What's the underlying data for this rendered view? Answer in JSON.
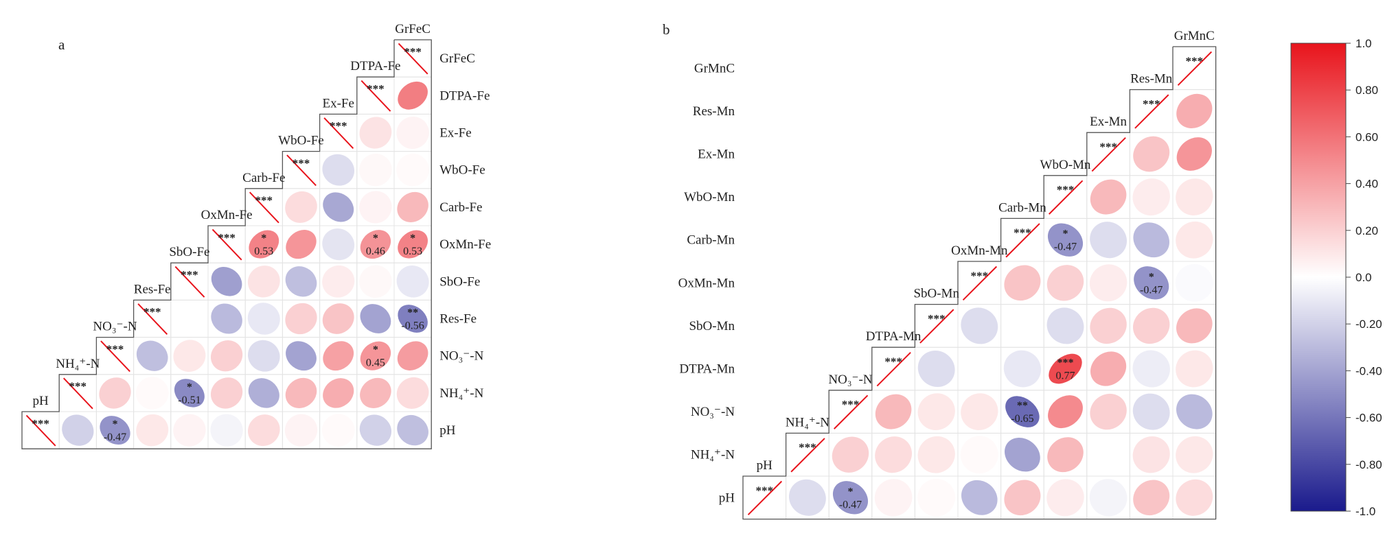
{
  "chart_data": [
    {
      "type": "heatmap",
      "panel_label": "a",
      "variables": [
        "GrFeC",
        "DTPA-Fe",
        "Ex-Fe",
        "WbO-Fe",
        "Carb-Fe",
        "OxMn-Fe",
        "SbO-Fe",
        "Res-Fe",
        "NO₃⁻-N",
        "NH₄⁺-N",
        "pH"
      ],
      "diagonal_mark": "***",
      "cells": [
        {
          "row": "DTPA-Fe",
          "col": "GrFeC",
          "r": 0.55
        },
        {
          "row": "Ex-Fe",
          "col": "DTPA-Fe",
          "r": 0.12
        },
        {
          "row": "Ex-Fe",
          "col": "GrFeC",
          "r": 0.05
        },
        {
          "row": "WbO-Fe",
          "col": "Ex-Fe",
          "r": -0.15
        },
        {
          "row": "WbO-Fe",
          "col": "DTPA-Fe",
          "r": 0.03
        },
        {
          "row": "WbO-Fe",
          "col": "GrFeC",
          "r": 0.02
        },
        {
          "row": "Carb-Fe",
          "col": "WbO-Fe",
          "r": 0.15
        },
        {
          "row": "Carb-Fe",
          "col": "Ex-Fe",
          "r": -0.38
        },
        {
          "row": "Carb-Fe",
          "col": "DTPA-Fe",
          "r": 0.05
        },
        {
          "row": "Carb-Fe",
          "col": "GrFeC",
          "r": 0.3
        },
        {
          "row": "OxMn-Fe",
          "col": "Carb-Fe",
          "r": 0.53,
          "label": "0.53",
          "sig": "*"
        },
        {
          "row": "OxMn-Fe",
          "col": "WbO-Fe",
          "r": 0.45
        },
        {
          "row": "OxMn-Fe",
          "col": "Ex-Fe",
          "r": -0.12
        },
        {
          "row": "OxMn-Fe",
          "col": "DTPA-Fe",
          "r": 0.46,
          "label": "0.46",
          "sig": "*"
        },
        {
          "row": "OxMn-Fe",
          "col": "GrFeC",
          "r": 0.53,
          "label": "0.53",
          "sig": "*"
        },
        {
          "row": "SbO-Fe",
          "col": "OxMn-Fe",
          "r": -0.42
        },
        {
          "row": "SbO-Fe",
          "col": "Carb-Fe",
          "r": 0.12
        },
        {
          "row": "SbO-Fe",
          "col": "WbO-Fe",
          "r": -0.28
        },
        {
          "row": "SbO-Fe",
          "col": "Ex-Fe",
          "r": 0.08
        },
        {
          "row": "SbO-Fe",
          "col": "DTPA-Fe",
          "r": 0.03
        },
        {
          "row": "SbO-Fe",
          "col": "GrFeC",
          "r": -0.1
        },
        {
          "row": "Res-Fe",
          "col": "OxMn-Fe",
          "r": -0.3
        },
        {
          "row": "Res-Fe",
          "col": "Carb-Fe",
          "r": -0.1
        },
        {
          "row": "Res-Fe",
          "col": "WbO-Fe",
          "r": 0.2
        },
        {
          "row": "Res-Fe",
          "col": "Ex-Fe",
          "r": 0.25
        },
        {
          "row": "Res-Fe",
          "col": "DTPA-Fe",
          "r": -0.4
        },
        {
          "row": "Res-Fe",
          "col": "GrFeC",
          "r": -0.56,
          "label": "-0.56",
          "sig": "**"
        },
        {
          "row": "NO₃⁻-N",
          "col": "Res-Fe",
          "r": -0.28
        },
        {
          "row": "NO₃⁻-N",
          "col": "SbO-Fe",
          "r": 0.1
        },
        {
          "row": "NO₃⁻-N",
          "col": "OxMn-Fe",
          "r": 0.2
        },
        {
          "row": "NO₃⁻-N",
          "col": "Carb-Fe",
          "r": -0.15
        },
        {
          "row": "NO₃⁻-N",
          "col": "WbO-Fe",
          "r": -0.4
        },
        {
          "row": "NO₃⁻-N",
          "col": "Ex-Fe",
          "r": 0.4
        },
        {
          "row": "NO₃⁻-N",
          "col": "DTPA-Fe",
          "r": 0.45,
          "label": "0.45",
          "sig": "*"
        },
        {
          "row": "NO₃⁻-N",
          "col": "GrFeC",
          "r": 0.42
        },
        {
          "row": "NH₄⁺-N",
          "col": "NO₃⁻-N",
          "r": 0.2
        },
        {
          "row": "NH₄⁺-N",
          "col": "Res-Fe",
          "r": 0.02
        },
        {
          "row": "NH₄⁺-N",
          "col": "SbO-Fe",
          "r": -0.51,
          "label": "-0.51",
          "sig": "*"
        },
        {
          "row": "NH₄⁺-N",
          "col": "OxMn-Fe",
          "r": 0.2
        },
        {
          "row": "NH₄⁺-N",
          "col": "Carb-Fe",
          "r": -0.35
        },
        {
          "row": "NH₄⁺-N",
          "col": "WbO-Fe",
          "r": 0.3
        },
        {
          "row": "NH₄⁺-N",
          "col": "Ex-Fe",
          "r": 0.35
        },
        {
          "row": "NH₄⁺-N",
          "col": "DTPA-Fe",
          "r": 0.3
        },
        {
          "row": "NH₄⁺-N",
          "col": "GrFeC",
          "r": 0.15
        },
        {
          "row": "pH",
          "col": "NH₄⁺-N",
          "r": -0.2
        },
        {
          "row": "pH",
          "col": "NO₃⁻-N",
          "r": -0.47,
          "label": "-0.47",
          "sig": "*"
        },
        {
          "row": "pH",
          "col": "Res-Fe",
          "r": 0.1
        },
        {
          "row": "pH",
          "col": "SbO-Fe",
          "r": 0.05
        },
        {
          "row": "pH",
          "col": "OxMn-Fe",
          "r": -0.05
        },
        {
          "row": "pH",
          "col": "Carb-Fe",
          "r": 0.15
        },
        {
          "row": "pH",
          "col": "WbO-Fe",
          "r": 0.05
        },
        {
          "row": "pH",
          "col": "Ex-Fe",
          "r": 0.02
        },
        {
          "row": "pH",
          "col": "DTPA-Fe",
          "r": -0.2
        },
        {
          "row": "pH",
          "col": "GrFeC",
          "r": -0.28
        }
      ]
    },
    {
      "type": "heatmap",
      "panel_label": "b",
      "variables": [
        "GrMnC",
        "Res-Mn",
        "Ex-Mn",
        "WbO-Mn",
        "Carb-Mn",
        "OxMn-Mn",
        "SbO-Mn",
        "DTPA-Mn",
        "NO₃⁻-N",
        "NH₄⁺-N",
        "pH"
      ],
      "diagonal_mark": "***",
      "cells": [
        {
          "row": "Res-Mn",
          "col": "GrMnC",
          "r": 0.35
        },
        {
          "row": "Ex-Mn",
          "col": "GrMnC",
          "r": 0.45
        },
        {
          "row": "Ex-Mn",
          "col": "Res-Mn",
          "r": 0.25
        },
        {
          "row": "WbO-Mn",
          "col": "GrMnC",
          "r": 0.1
        },
        {
          "row": "WbO-Mn",
          "col": "Res-Mn",
          "r": 0.08
        },
        {
          "row": "WbO-Mn",
          "col": "Ex-Mn",
          "r": 0.3
        },
        {
          "row": "Carb-Mn",
          "col": "GrMnC",
          "r": 0.1
        },
        {
          "row": "Carb-Mn",
          "col": "Res-Mn",
          "r": -0.3
        },
        {
          "row": "Carb-Mn",
          "col": "Ex-Mn",
          "r": -0.15
        },
        {
          "row": "Carb-Mn",
          "col": "WbO-Mn",
          "r": -0.47,
          "label": "-0.47",
          "sig": "*"
        },
        {
          "row": "OxMn-Mn",
          "col": "GrMnC",
          "r": -0.02
        },
        {
          "row": "OxMn-Mn",
          "col": "Res-Mn",
          "r": -0.47,
          "label": "-0.47",
          "sig": "*"
        },
        {
          "row": "OxMn-Mn",
          "col": "Ex-Mn",
          "r": 0.08
        },
        {
          "row": "OxMn-Mn",
          "col": "WbO-Mn",
          "r": 0.2
        },
        {
          "row": "OxMn-Mn",
          "col": "Carb-Mn",
          "r": 0.25
        },
        {
          "row": "SbO-Mn",
          "col": "GrMnC",
          "r": 0.3
        },
        {
          "row": "SbO-Mn",
          "col": "Res-Mn",
          "r": 0.2
        },
        {
          "row": "SbO-Mn",
          "col": "Ex-Mn",
          "r": 0.2
        },
        {
          "row": "SbO-Mn",
          "col": "WbO-Mn",
          "r": -0.15
        },
        {
          "row": "SbO-Mn",
          "col": "OxMn-Mn",
          "r": -0.15
        },
        {
          "row": "DTPA-Mn",
          "col": "GrMnC",
          "r": 0.1
        },
        {
          "row": "DTPA-Mn",
          "col": "Res-Mn",
          "r": -0.08
        },
        {
          "row": "DTPA-Mn",
          "col": "Ex-Mn",
          "r": 0.35
        },
        {
          "row": "DTPA-Mn",
          "col": "WbO-Mn",
          "r": 0.77,
          "label": "0.77",
          "sig": "***"
        },
        {
          "row": "DTPA-Mn",
          "col": "Carb-Mn",
          "r": -0.1
        },
        {
          "row": "DTPA-Mn",
          "col": "SbO-Mn",
          "r": -0.15
        },
        {
          "row": "NO₃⁻-N",
          "col": "GrMnC",
          "r": -0.3
        },
        {
          "row": "NO₃⁻-N",
          "col": "Res-Mn",
          "r": -0.15
        },
        {
          "row": "NO₃⁻-N",
          "col": "Ex-Mn",
          "r": 0.2
        },
        {
          "row": "NO₃⁻-N",
          "col": "WbO-Mn",
          "r": 0.5
        },
        {
          "row": "NO₃⁻-N",
          "col": "Carb-Mn",
          "r": -0.65,
          "label": "-0.65",
          "sig": "**"
        },
        {
          "row": "NO₃⁻-N",
          "col": "OxMn-Mn",
          "r": 0.1
        },
        {
          "row": "NO₃⁻-N",
          "col": "SbO-Mn",
          "r": 0.1
        },
        {
          "row": "NO₃⁻-N",
          "col": "DTPA-Mn",
          "r": 0.3
        },
        {
          "row": "NH₄⁺-N",
          "col": "GrMnC",
          "r": 0.1
        },
        {
          "row": "NH₄⁺-N",
          "col": "Res-Mn",
          "r": 0.12
        },
        {
          "row": "NH₄⁺-N",
          "col": "WbO-Mn",
          "r": 0.3
        },
        {
          "row": "NH₄⁺-N",
          "col": "Carb-Mn",
          "r": -0.4
        },
        {
          "row": "NH₄⁺-N",
          "col": "OxMn-Mn",
          "r": 0.02
        },
        {
          "row": "NH₄⁺-N",
          "col": "SbO-Mn",
          "r": 0.1
        },
        {
          "row": "NH₄⁺-N",
          "col": "DTPA-Mn",
          "r": 0.15
        },
        {
          "row": "NH₄⁺-N",
          "col": "NO₃⁻-N",
          "r": 0.2
        },
        {
          "row": "pH",
          "col": "GrMnC",
          "r": 0.15
        },
        {
          "row": "pH",
          "col": "Res-Mn",
          "r": 0.25
        },
        {
          "row": "pH",
          "col": "Ex-Mn",
          "r": -0.05
        },
        {
          "row": "pH",
          "col": "WbO-Mn",
          "r": 0.08
        },
        {
          "row": "pH",
          "col": "Carb-Mn",
          "r": 0.25
        },
        {
          "row": "pH",
          "col": "OxMn-Mn",
          "r": -0.3
        },
        {
          "row": "pH",
          "col": "SbO-Mn",
          "r": 0.02
        },
        {
          "row": "pH",
          "col": "DTPA-Mn",
          "r": 0.05
        },
        {
          "row": "pH",
          "col": "NO₃⁻-N",
          "r": -0.47,
          "label": "-0.47",
          "sig": "*"
        },
        {
          "row": "pH",
          "col": "NH₄⁺-N",
          "r": -0.15
        }
      ]
    }
  ],
  "colorbar": {
    "range": [
      -1.0,
      1.0
    ],
    "ticks": [
      "1.0",
      "0.80",
      "0.60",
      "0.40",
      "0.20",
      "0.0",
      "-0.20",
      "-0.40",
      "-0.60",
      "-0.80",
      "-1.0"
    ],
    "colors": {
      "negative": "#1a1a8c",
      "zero": "#ffffff",
      "positive": "#e8141c"
    }
  }
}
